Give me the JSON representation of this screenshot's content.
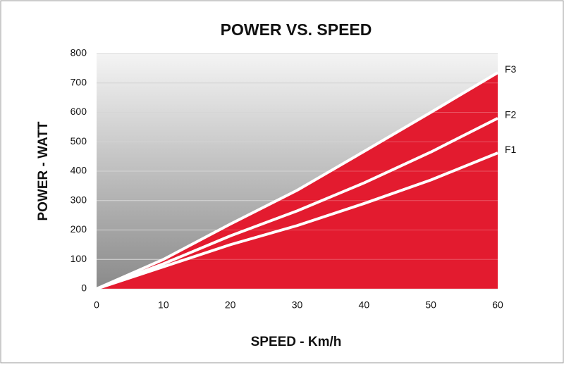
{
  "chart_data": {
    "type": "area",
    "title": "POWER VS. SPEED",
    "x_label": "SPEED - Km/h",
    "y_label": "POWER - WATT",
    "x": [
      0,
      10,
      20,
      30,
      40,
      50,
      60
    ],
    "series": [
      {
        "name": "F1",
        "color": "#ffffff",
        "values": [
          0,
          75,
          150,
          215,
          290,
          370,
          462
        ]
      },
      {
        "name": "F2",
        "color": "#ffffff",
        "values": [
          0,
          85,
          180,
          265,
          360,
          465,
          580
        ]
      },
      {
        "name": "F3",
        "color": "#ffffff",
        "values": [
          0,
          100,
          220,
          335,
          467,
          600,
          735
        ]
      }
    ],
    "fill_color": "#e31b2f",
    "xlim": [
      0,
      60
    ],
    "xticks": [
      0,
      10,
      20,
      30,
      40,
      50,
      60
    ],
    "ylim": [
      0,
      800
    ],
    "yticks": [
      0,
      100,
      200,
      300,
      400,
      500,
      600,
      700,
      800
    ],
    "grid": true
  }
}
